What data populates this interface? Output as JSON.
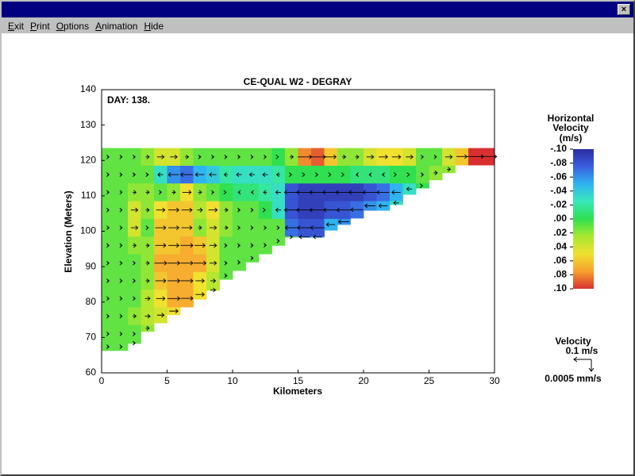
{
  "window": {
    "menu": [
      "Exit",
      "Print",
      "Options",
      "Animation",
      "Hide"
    ]
  },
  "chart_data": {
    "type": "heatmap",
    "title": "CE-QUAL W2 - DEGRAY",
    "annotation": "DAY: 138.",
    "xlabel": "Kilometers",
    "ylabel": "Elevation (Meters)",
    "xlim": [
      0,
      30
    ],
    "xticks": [
      0,
      5,
      10,
      15,
      20,
      25,
      30
    ],
    "ylim": [
      60,
      140
    ],
    "yticks": [
      60,
      70,
      80,
      90,
      100,
      110,
      120,
      130,
      140
    ],
    "surface": 123.5,
    "layer_thickness": 5,
    "bottom": [
      66.3,
      66.3,
      68.3,
      71.7,
      74.1,
      76.4,
      78.6,
      80.8,
      83.3,
      86.4,
      88.9,
      91.3,
      93.6,
      96.0,
      98.3,
      98.3,
      98.3,
      100.3,
      101.9,
      103.7,
      105.9,
      105.9,
      107.5,
      110.4,
      112.2,
      114.5,
      116.5,
      118.7,
      118.7,
      118.7
    ],
    "velocity": [
      [
        0.01,
        0.01,
        0.01,
        0.01,
        0.01,
        0.01,
        0.01,
        0.01,
        0.01,
        0.01,
        0.01,
        0.01
      ],
      [
        0.01,
        0.01,
        0.01,
        0.01,
        0.01,
        0.01,
        0.01,
        0.01,
        0.01,
        0.01,
        0.01,
        0.01
      ],
      [
        0.01,
        0.01,
        0.02,
        0.04,
        0.04,
        0.02,
        0.01,
        0.01,
        0.01,
        0.02,
        0.01,
        0.01
      ],
      [
        0.02,
        0.01,
        0.02,
        0.02,
        0.01,
        0.02,
        0.02,
        0.02,
        0.03,
        0.03,
        0.02
      ],
      [
        0.04,
        -0.03,
        0.01,
        0.05,
        0.06,
        0.06,
        0.07,
        0.06,
        0.05,
        0.04
      ],
      [
        0.04,
        -0.06,
        0.02,
        0.06,
        0.06,
        0.06,
        0.07,
        0.07,
        0.07,
        0.05
      ],
      [
        0.02,
        -0.07,
        0.05,
        0.06,
        0.06,
        0.07,
        0.07,
        0.07,
        0.07
      ],
      [
        0.01,
        -0.05,
        0.02,
        0.03,
        0.02,
        0.06,
        0.07,
        0.05,
        0.05
      ],
      [
        0.01,
        -0.04,
        0.01,
        0.05,
        0.04,
        0.04,
        0.04,
        0.03,
        0.03
      ],
      [
        0.01,
        -0.02,
        0.0,
        0.02,
        0.02,
        0.01,
        0.01,
        0.01
      ],
      [
        0.01,
        -0.03,
        -0.01,
        0.01,
        0.01,
        0.01,
        0.01
      ],
      [
        0.01,
        -0.03,
        -0.01,
        0.01,
        0.01,
        0.01,
        0.01
      ],
      [
        0.01,
        -0.03,
        -0.02,
        0.0,
        0.01,
        0.01
      ],
      [
        0.0,
        -0.02,
        -0.03,
        -0.03,
        0.01,
        0.01
      ],
      [
        0.02,
        0.0,
        -0.08,
        -0.08,
        -0.07,
        0.01
      ],
      [
        0.08,
        0.0,
        -0.09,
        -0.09,
        -0.08,
        -0.06
      ],
      [
        0.09,
        0.0,
        -0.09,
        -0.09,
        -0.08,
        -0.05
      ],
      [
        0.06,
        0.0,
        -0.09,
        -0.08,
        -0.05
      ],
      [
        0.02,
        0.0,
        -0.09,
        -0.08,
        -0.06
      ],
      [
        0.02,
        -0.01,
        -0.09,
        -0.07
      ],
      [
        0.04,
        -0.01,
        -0.08,
        -0.06
      ],
      [
        0.05,
        -0.01,
        -0.07,
        -0.05
      ],
      [
        0.05,
        0.0,
        -0.05,
        -0.03
      ],
      [
        0.04,
        0.0,
        -0.03
      ],
      [
        0.01,
        0.01,
        0.0
      ],
      [
        0.01,
        0.02
      ],
      [
        0.04,
        0.02
      ],
      [
        0.06
      ],
      [
        0.1
      ],
      [
        0.1
      ]
    ],
    "colorbar": {
      "title": [
        "Horizontal",
        "Velocity",
        "(m/s)"
      ],
      "clim": [
        -0.1,
        0.1
      ],
      "colors": [
        "#2c2ca0",
        "#3a5ee0",
        "#30b4f0",
        "#38e8b8",
        "#30e050",
        "#a8e830",
        "#f0e030",
        "#f8a030",
        "#d83030"
      ],
      "ticks": [
        {
          "value": -0.1,
          "label": "-.10"
        },
        {
          "value": -0.08,
          "label": "-.08"
        },
        {
          "value": -0.06,
          "label": "-.06"
        },
        {
          "value": -0.04,
          "label": "-.04"
        },
        {
          "value": -0.02,
          "label": "-.02"
        },
        {
          "value": 0,
          "label": ".00"
        },
        {
          "value": 0.02,
          "label": ".02"
        },
        {
          "value": 0.04,
          "label": ".04"
        },
        {
          "value": 0.06,
          "label": ".06"
        },
        {
          "value": 0.08,
          "label": ".08"
        },
        {
          "value": 0.1,
          "label": ".10"
        }
      ]
    },
    "vector_legend": {
      "title": "Velocity",
      "horizontal": "0.1 m/s",
      "vertical": "0.0005 mm/s"
    }
  }
}
